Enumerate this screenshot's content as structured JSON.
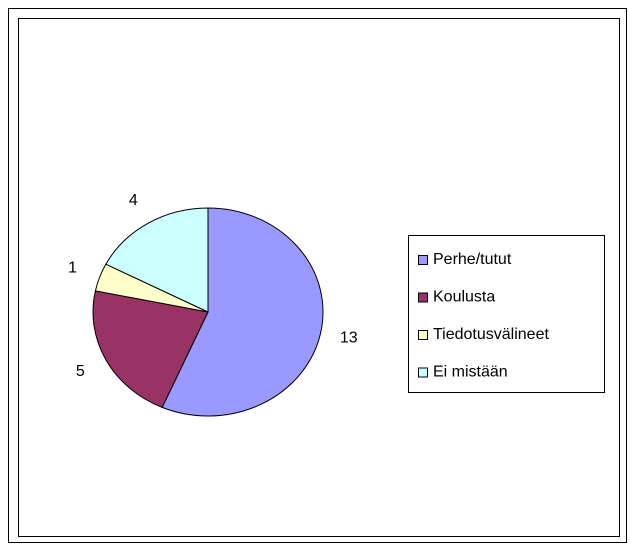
{
  "chart_data": {
    "type": "pie",
    "categories": [
      "Perhe/tutut",
      "Koulusta",
      "Tiedotusvälineet",
      "Ei mistään"
    ],
    "values": [
      13,
      5,
      1,
      4
    ],
    "colors": [
      "#9999ff",
      "#993366",
      "#ffffcc",
      "#ccffff"
    ],
    "legend": "right"
  }
}
